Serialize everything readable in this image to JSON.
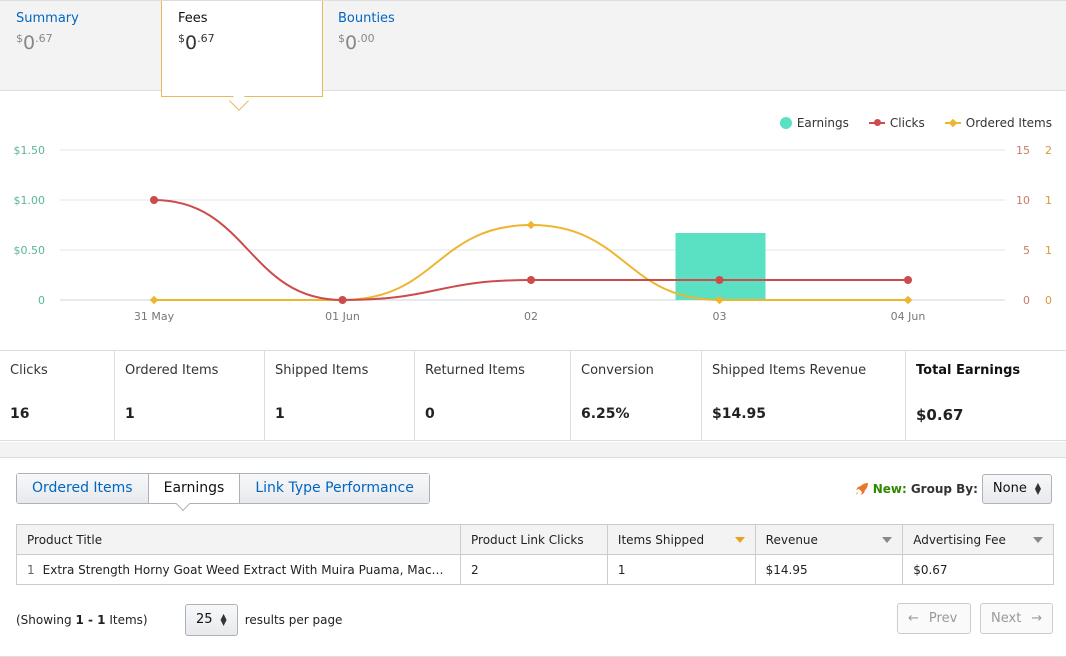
{
  "summary_tabs": [
    {
      "label": "Summary",
      "currency": "$",
      "whole": "0",
      "cents": "67"
    },
    {
      "label": "Fees",
      "currency": "$",
      "whole": "0",
      "cents": "67"
    },
    {
      "label": "Bounties",
      "currency": "$",
      "whole": "0",
      "cents": "00"
    }
  ],
  "chart_data": {
    "type": "line",
    "categories": [
      "31 May",
      "01 Jun",
      "02",
      "03",
      "04 Jun"
    ],
    "series": [
      {
        "name": "Earnings",
        "kind": "bar",
        "axis": "left",
        "values": [
          0,
          0,
          0,
          0.67,
          0
        ],
        "color": "#5ae0c2"
      },
      {
        "name": "Clicks",
        "kind": "line",
        "axis": "right1",
        "values": [
          10,
          0,
          2,
          2,
          2
        ],
        "color": "#cc4c4c"
      },
      {
        "name": "Ordered Items",
        "kind": "line",
        "axis": "right2",
        "values": [
          0,
          0,
          1,
          0,
          0
        ],
        "color": "#eeb530"
      }
    ],
    "y_left_ticks": [
      "$1.50",
      "$1.00",
      "$0.50",
      "0"
    ],
    "y_left_lim": [
      0,
      1.5
    ],
    "y_right1_ticks": [
      "15",
      "10",
      "5",
      "0"
    ],
    "y_right1_lim": [
      0,
      15
    ],
    "y_right2_ticks": [
      "2",
      "1",
      "1",
      "0"
    ],
    "y_right2_lim": [
      0,
      2
    ],
    "legend_position": "top-right",
    "grid": true
  },
  "legend": [
    "Earnings",
    "Clicks",
    "Ordered Items"
  ],
  "metrics": [
    {
      "label": "Clicks",
      "value": "16"
    },
    {
      "label": "Ordered Items",
      "value": "1"
    },
    {
      "label": "Shipped Items",
      "value": "1"
    },
    {
      "label": "Returned Items",
      "value": "0"
    },
    {
      "label": "Conversion",
      "value": "6.25%"
    },
    {
      "label": "Shipped Items Revenue",
      "value": "$14.95"
    },
    {
      "label": "Total Earnings",
      "value": "$0.67"
    }
  ],
  "report_tabs": [
    "Ordered Items",
    "Earnings",
    "Link Type Performance"
  ],
  "group_by": {
    "new_label": "New:",
    "label": "Group By:",
    "value": "None"
  },
  "table": {
    "headers": [
      "Product Title",
      "Product Link Clicks",
      "Items Shipped",
      "Revenue",
      "Advertising Fee"
    ],
    "rows": [
      {
        "index": "1",
        "title": "Extra Strength Horny Goat Weed Extract With Muira Puama, Maca Ro…",
        "clicks": "2",
        "shipped": "1",
        "revenue": "$14.95",
        "fee": "$0.67"
      }
    ]
  },
  "pager": {
    "showing_prefix": "(Showing",
    "showing_range": "1 - 1",
    "showing_suffix": "Items)",
    "per_page": "25",
    "per_page_label": "results per page",
    "prev": "Prev",
    "next": "Next"
  }
}
